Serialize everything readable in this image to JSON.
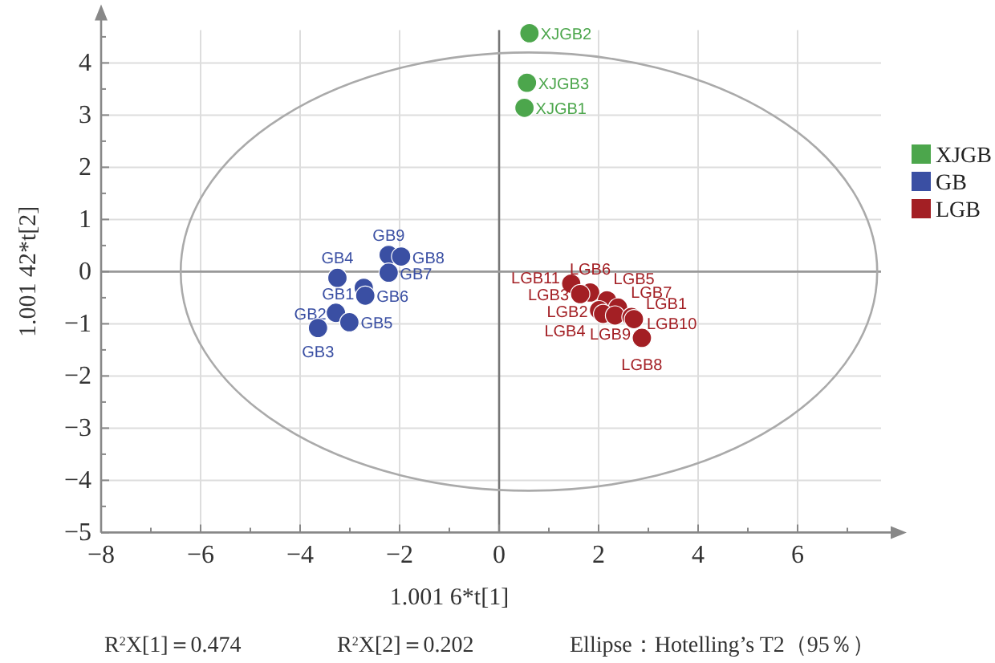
{
  "chart_data": {
    "type": "scatter",
    "xlabel": "1.001 6*t[1]",
    "ylabel": "1.001 42*t[2]",
    "xlim": [
      -8,
      8
    ],
    "ylim": [
      -5,
      5
    ],
    "xticks": [
      {
        "value": -8,
        "label": "−8"
      },
      {
        "value": -7,
        "label": null
      },
      {
        "value": -6,
        "label": "−6"
      },
      {
        "value": -5,
        "label": null
      },
      {
        "value": -4,
        "label": "−4"
      },
      {
        "value": -3,
        "label": null
      },
      {
        "value": -2,
        "label": "−2"
      },
      {
        "value": -1,
        "label": null
      },
      0,
      {
        "value": 1,
        "label": null
      },
      2,
      {
        "value": 3,
        "label": null
      },
      4,
      {
        "value": 5,
        "label": null
      },
      6,
      {
        "value": 7,
        "label": null
      }
    ],
    "yticks": [
      {
        "value": -5,
        "label": "−5"
      },
      {
        "value": -4.5,
        "label": null
      },
      {
        "value": -4,
        "label": "−4"
      },
      {
        "value": -3.5,
        "label": null
      },
      {
        "value": -3,
        "label": "−3"
      },
      {
        "value": -2.5,
        "label": null
      },
      {
        "value": -2,
        "label": "−2"
      },
      {
        "value": -1.5,
        "label": null
      },
      {
        "value": -1,
        "label": "−1"
      },
      {
        "value": -0.5,
        "label": null
      },
      0,
      {
        "value": 0.5,
        "label": null
      },
      1,
      {
        "value": 1.5,
        "label": null
      },
      2,
      {
        "value": 2.5,
        "label": null
      },
      3,
      {
        "value": 3.5,
        "label": null
      },
      4,
      {
        "value": 4.5,
        "label": null
      }
    ],
    "grid": true,
    "legend": "right",
    "marker": "circle",
    "ref_lines": [
      {
        "axis": "x",
        "value": 0,
        "color": "#777777"
      },
      {
        "axis": "y",
        "value": 0,
        "color": "#999999"
      }
    ],
    "series": [
      {
        "name": "XJGB",
        "color": "#4ca64c",
        "x": [
          0.61,
          0.56,
          0.51
        ],
        "values": [
          4.57,
          3.62,
          3.14
        ],
        "value_labels": [
          "XJGB2",
          "XJGB3",
          "XJGB1"
        ]
      },
      {
        "name": "GB",
        "color": "#3a4fa3",
        "x": [
          -2.22,
          -1.97,
          -2.22,
          -3.25,
          -2.72,
          -2.69,
          -3.28,
          -3.01,
          -3.64
        ],
        "values": [
          0.32,
          0.29,
          -0.02,
          -0.12,
          -0.31,
          -0.46,
          -0.79,
          -0.97,
          -1.08
        ],
        "value_labels": [
          "GB9",
          "GB8",
          "GB7",
          "GB4",
          "GB1",
          "GB6",
          "GB2",
          "GB5",
          "GB3"
        ]
      },
      {
        "name": "LGB",
        "color": "#a31f24",
        "x": [
          1.45,
          1.83,
          1.63,
          2.17,
          2.39,
          2.01,
          2.09,
          2.33,
          2.66,
          2.71,
          2.87
        ],
        "values": [
          -0.23,
          -0.4,
          -0.43,
          -0.55,
          -0.69,
          -0.74,
          -0.81,
          -0.84,
          -0.87,
          -0.91,
          -1.27
        ],
        "value_labels": [
          "LGB11",
          "LGB6",
          "LGB3",
          "LGB5",
          "LGB7",
          "LGB2",
          "LGB4",
          "LGB9",
          "LGB1",
          "LGB10",
          "LGB8"
        ]
      }
    ],
    "annotations": [
      "R$^{2}$X[1]＝0.474",
      "R$^{2}$X[2]＝0.202",
      "Ellipse：Hotelling’s T2（95％）"
    ]
  }
}
